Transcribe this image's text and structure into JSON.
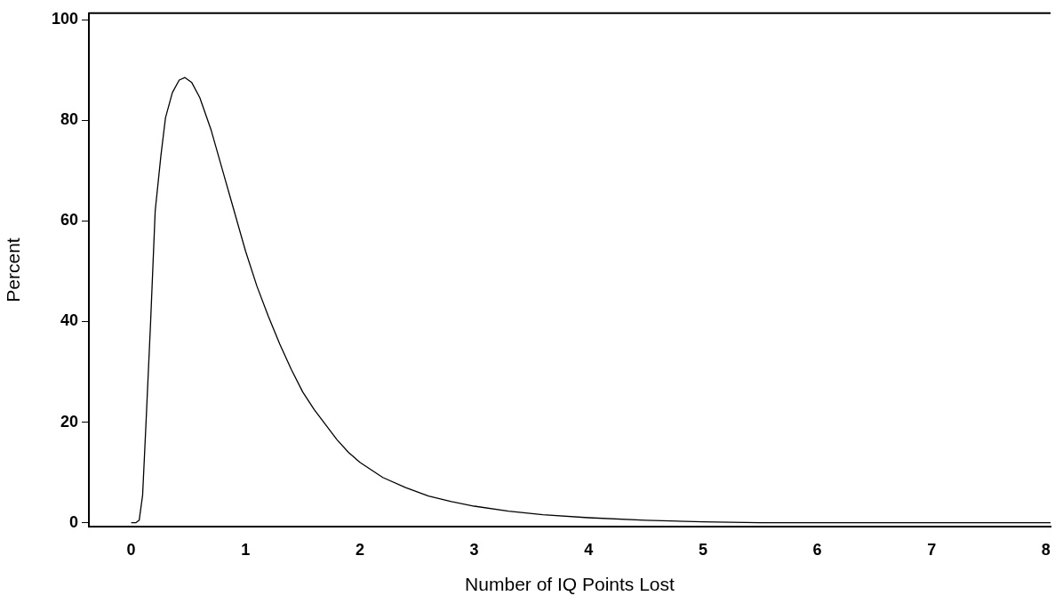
{
  "chart_data": {
    "type": "line",
    "xlabel": "Number of IQ Points Lost",
    "ylabel": "Percent",
    "xlim": [
      -0.37,
      8.04
    ],
    "ylim": [
      -0.8,
      101.3
    ],
    "xticks": [
      0,
      1,
      2,
      3,
      4,
      5,
      6,
      7,
      8
    ],
    "yticks": [
      0,
      20,
      40,
      60,
      80,
      100
    ],
    "grid": false,
    "legend": false,
    "marker": "none",
    "line_style": "solid",
    "series": [
      {
        "color": "#000000",
        "x": [
          0,
          0.04,
          0.07,
          0.1,
          0.13,
          0.17,
          0.21,
          0.26,
          0.3,
          0.36,
          0.42,
          0.47,
          0.53,
          0.6,
          0.7,
          0.8,
          0.9,
          1.0,
          1.1,
          1.2,
          1.3,
          1.4,
          1.5,
          1.6,
          1.7,
          1.8,
          1.9,
          2.0,
          2.2,
          2.4,
          2.6,
          2.8,
          3.0,
          3.3,
          3.6,
          4.0,
          4.5,
          5.0,
          5.5,
          6.0,
          7.0,
          8.04
        ],
        "values": [
          0,
          0,
          0.5,
          5.5,
          20,
          40,
          62,
          73,
          80.5,
          85.5,
          88,
          88.5,
          87.5,
          84.5,
          78,
          70,
          62,
          54,
          47,
          41,
          35.5,
          30.5,
          26,
          22.5,
          19.5,
          16.5,
          14,
          12,
          9,
          7,
          5.3,
          4.2,
          3.3,
          2.3,
          1.6,
          1,
          0.5,
          0.2,
          0,
          0,
          0,
          0
        ]
      }
    ]
  }
}
